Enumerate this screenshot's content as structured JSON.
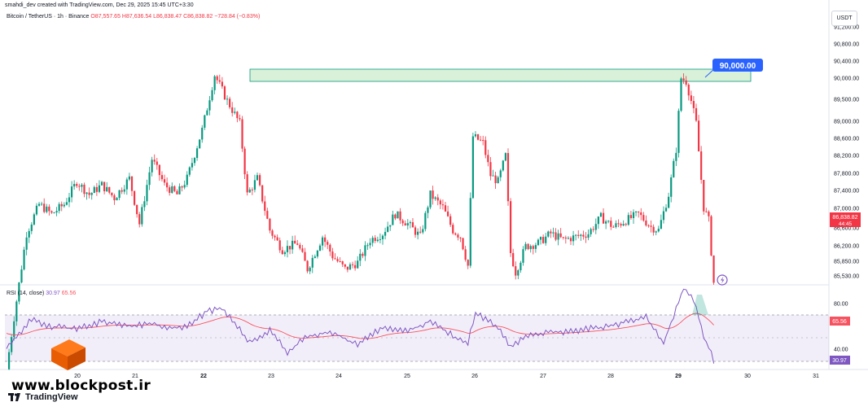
{
  "header": {
    "author_line": "smahdi_dev created with TradingView.com, Dec 29, 2025 15:45 UTC+3:30",
    "symbol": "Bitcoin / TetherUS · 1h · Binance",
    "open": "O87,557.65",
    "high": "H87,636.54",
    "low": "L86,838.47",
    "close": "C86,838.82",
    "change": "−728.84 (−0.83%)"
  },
  "currency": "USDT",
  "price_axis": {
    "ticks": [
      "91,200.00",
      "90,800.00",
      "90,400.00",
      "90,000.00",
      "89,500.00",
      "89,000.00",
      "88,600.00",
      "88,200.00",
      "87,800.00",
      "87,400.00",
      "87,000.00",
      "86,600.00",
      "86,200.00",
      "85,850.00",
      "85,530.00"
    ],
    "last_price": "86,838.82",
    "countdown": "44:45"
  },
  "zone_label": "90,000.00",
  "rsi": {
    "label": "RSI (14, close)",
    "value": "30.97",
    "ma_value": "65.56",
    "ticks": [
      "80.00",
      "60.00",
      "40.00"
    ]
  },
  "time_axis": [
    "20",
    "21",
    "22",
    "23",
    "24",
    "25",
    "26",
    "27",
    "28",
    "29",
    "30",
    "31"
  ],
  "watermark": "www.blockpost.ir",
  "brand": "TradingView",
  "colors": {
    "up": "#089981",
    "down": "#f23645",
    "rsi": "#7e57c2",
    "rsi_ma": "#f7525f",
    "zone": "#d9f0d9",
    "blue": "#2962ff"
  },
  "chart_data": {
    "type": "candlestick",
    "price_ylim": [
      85400,
      91400
    ],
    "key_points_price": [
      [
        0,
        85500
      ],
      [
        3,
        86300
      ],
      [
        8,
        87600
      ],
      [
        13,
        88050
      ],
      [
        18,
        87900
      ],
      [
        23,
        88050
      ],
      [
        28,
        88400
      ],
      [
        33,
        88200
      ],
      [
        38,
        88350
      ],
      [
        43,
        88150
      ],
      [
        49,
        88450
      ],
      [
        53,
        87750
      ],
      [
        58,
        88750
      ],
      [
        63,
        88350
      ],
      [
        68,
        88200
      ],
      [
        72,
        88450
      ],
      [
        78,
        89200
      ],
      [
        83,
        90050
      ],
      [
        88,
        89650
      ],
      [
        93,
        89300
      ],
      [
        96,
        88200
      ],
      [
        100,
        88450
      ],
      [
        105,
        87650
      ],
      [
        110,
        87350
      ],
      [
        116,
        87450
      ],
      [
        120,
        87050
      ],
      [
        126,
        87550
      ],
      [
        130,
        87250
      ],
      [
        135,
        87050
      ],
      [
        140,
        87150
      ],
      [
        145,
        87500
      ],
      [
        150,
        87600
      ],
      [
        155,
        87900
      ],
      [
        160,
        87750
      ],
      [
        165,
        87550
      ],
      [
        169,
        88200
      ],
      [
        174,
        88000
      ],
      [
        178,
        87650
      ],
      [
        181,
        87550
      ],
      [
        184,
        87100
      ],
      [
        186,
        89100
      ],
      [
        190,
        89000
      ],
      [
        193,
        88500
      ],
      [
        196,
        88400
      ],
      [
        199,
        88800
      ],
      [
        201,
        87300
      ],
      [
        203,
        87000
      ],
      [
        207,
        87400
      ],
      [
        212,
        87450
      ],
      [
        217,
        87600
      ],
      [
        222,
        87500
      ],
      [
        227,
        87550
      ],
      [
        232,
        87600
      ],
      [
        237,
        87850
      ],
      [
        242,
        87700
      ],
      [
        247,
        87800
      ],
      [
        252,
        87900
      ],
      [
        257,
        87700
      ],
      [
        260,
        87650
      ],
      [
        264,
        88200
      ],
      [
        267,
        88900
      ],
      [
        269,
        90000
      ],
      [
        271,
        89950
      ],
      [
        273,
        89650
      ],
      [
        275,
        89300
      ],
      [
        278,
        88000
      ],
      [
        280,
        87800
      ],
      [
        282,
        86838
      ]
    ],
    "key_points_rsi": [
      [
        0,
        43
      ],
      [
        10,
        66
      ],
      [
        18,
        60
      ],
      [
        28,
        58
      ],
      [
        38,
        64
      ],
      [
        49,
        61
      ],
      [
        58,
        62
      ],
      [
        70,
        58
      ],
      [
        80,
        73
      ],
      [
        86,
        76
      ],
      [
        93,
        58
      ],
      [
        97,
        46
      ],
      [
        105,
        57
      ],
      [
        112,
        38
      ],
      [
        120,
        52
      ],
      [
        130,
        55
      ],
      [
        140,
        44
      ],
      [
        150,
        60
      ],
      [
        160,
        56
      ],
      [
        169,
        65
      ],
      [
        178,
        52
      ],
      [
        184,
        46
      ],
      [
        187,
        72
      ],
      [
        196,
        60
      ],
      [
        201,
        43
      ],
      [
        210,
        54
      ],
      [
        225,
        56
      ],
      [
        240,
        60
      ],
      [
        255,
        68
      ],
      [
        262,
        45
      ],
      [
        266,
        70
      ],
      [
        270,
        93
      ],
      [
        274,
        83
      ],
      [
        278,
        52
      ],
      [
        282,
        31
      ]
    ],
    "ma_start": 55,
    "ma_end": 65.56
  }
}
